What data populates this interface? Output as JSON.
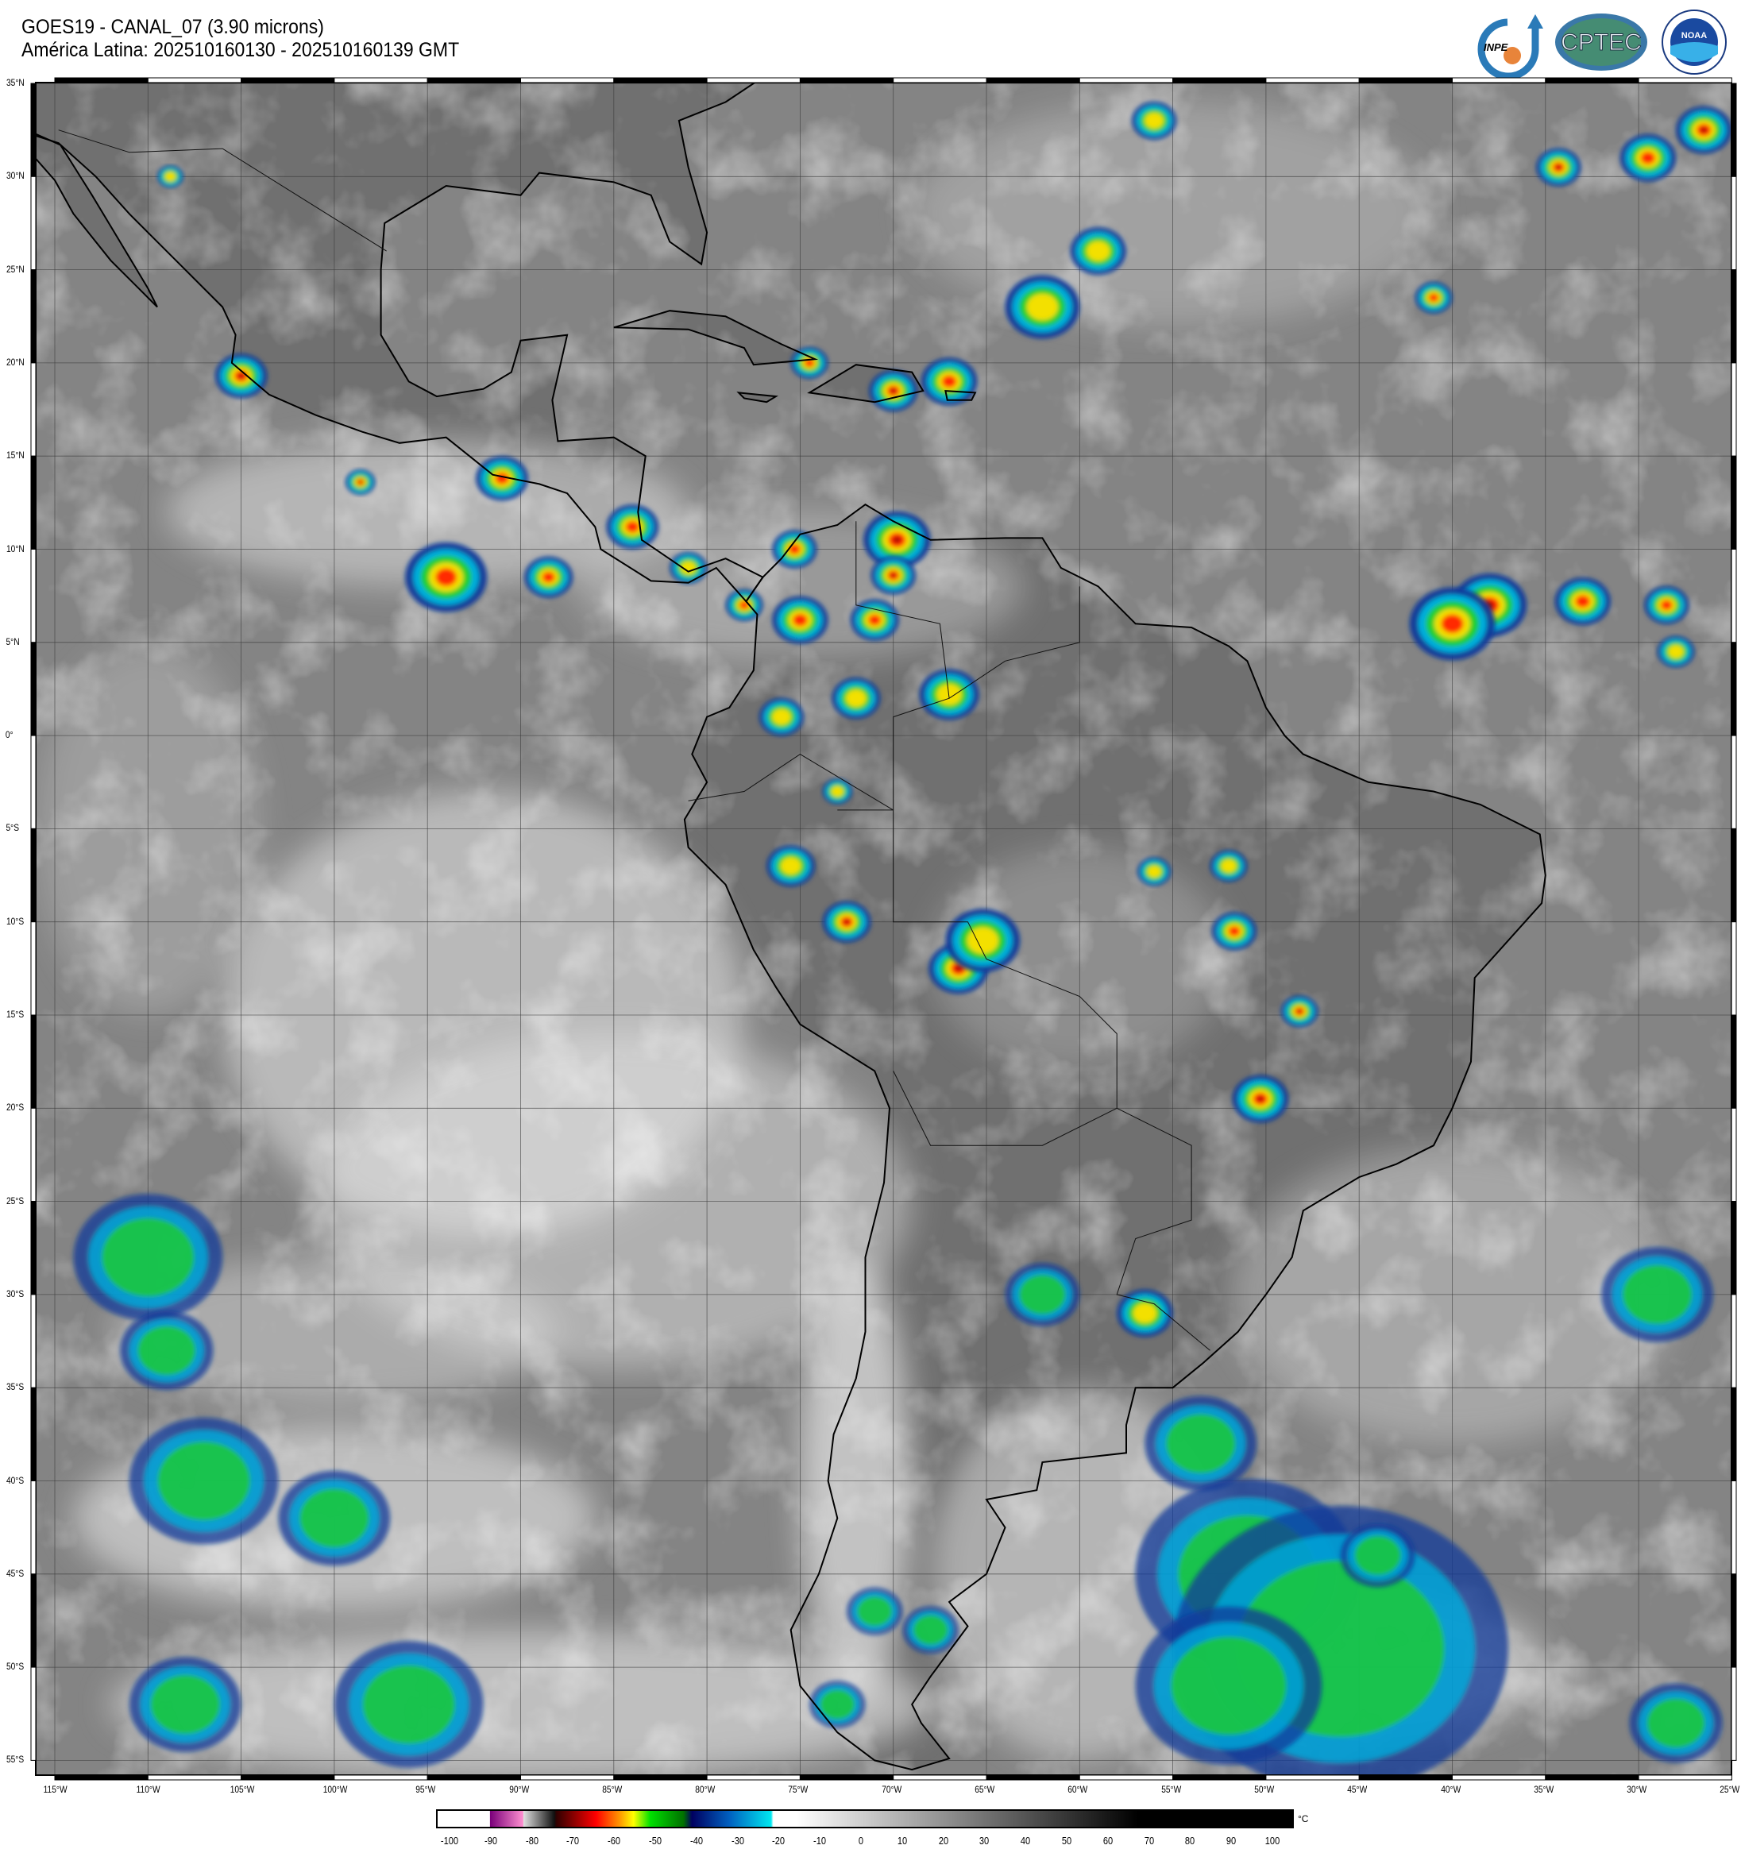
{
  "header": {
    "title_line1": "GOES19 - CANAL_07 (3.90 microns)",
    "title_line2": "América Latina: 202510160130 - 202510160139 GMT"
  },
  "logos": [
    {
      "name": "INPE",
      "text": "INPE"
    },
    {
      "name": "CPTEC",
      "text": "CPTEC"
    },
    {
      "name": "NOAA",
      "text": "NOAA"
    }
  ],
  "map": {
    "projection": "equirectangular",
    "lon_range": [
      -116,
      -25
    ],
    "lat_range": [
      -55.8,
      35
    ],
    "grid": true,
    "lat_labels": [
      "35°N",
      "30°N",
      "25°N",
      "20°N",
      "15°N",
      "10°N",
      "5°N",
      "0°",
      "5°S",
      "10°S",
      "15°S",
      "20°S",
      "25°S",
      "30°S",
      "35°S",
      "40°S",
      "45°S",
      "50°S",
      "55°S"
    ],
    "lon_labels": [
      "115°W",
      "110°W",
      "105°W",
      "100°W",
      "95°W",
      "90°W",
      "85°W",
      "80°W",
      "75°W",
      "70°W",
      "65°W",
      "60°W",
      "55°W",
      "50°W",
      "45°W",
      "40°W",
      "35°W",
      "30°W",
      "25°W"
    ]
  },
  "colorbar": {
    "unit": "°C",
    "range": [
      -100,
      105
    ],
    "ticks": [
      "-100",
      "-90",
      "-80",
      "-70",
      "-60",
      "-50",
      "-40",
      "-30",
      "-20",
      "-10",
      "0",
      "10",
      "20",
      "30",
      "40",
      "50",
      "60",
      "70",
      "80",
      "90",
      "100"
    ],
    "colors": {
      "purple": "#8b008b",
      "pink": "#ff80c0",
      "red": "#ff0000",
      "yellow": "#ffff00",
      "green": "#00e000",
      "navy": "#000070",
      "cyan": "#00e0f0"
    }
  }
}
